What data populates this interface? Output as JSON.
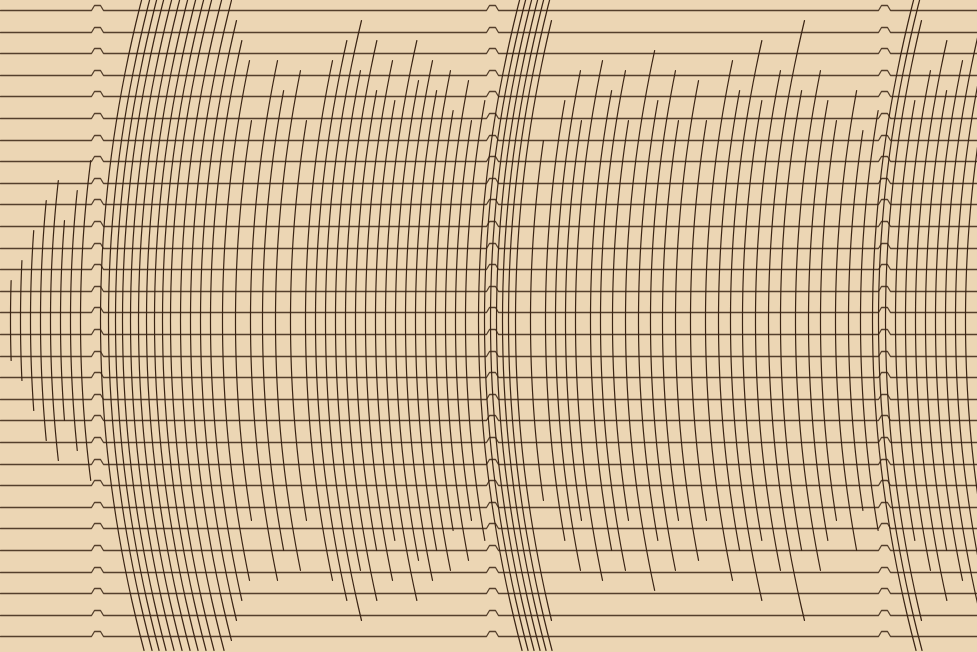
{
  "chart_data": {
    "type": "seismogram",
    "tick_labels": false,
    "grid": false,
    "color": "#3a2414",
    "xlim": [
      0,
      977
    ],
    "ylim": [
      0,
      652
    ],
    "trace_baselines": [
      10,
      32,
      53,
      75,
      96,
      118,
      140,
      161,
      183,
      204,
      226,
      248,
      269,
      291,
      312,
      334,
      356,
      377,
      399,
      420,
      442,
      464,
      485,
      507,
      528,
      550,
      572,
      593,
      615,
      636
    ],
    "time_marks": [
      95,
      490,
      882
    ],
    "swings": {
      "center": 320,
      "x": [
        10,
        20,
        30,
        40,
        50,
        60,
        70,
        80,
        100,
        108,
        115,
        122,
        130,
        138,
        146,
        154,
        162,
        170,
        180,
        190,
        200,
        210,
        222,
        235,
        250,
        262,
        275,
        290,
        305,
        315,
        325,
        335,
        345,
        355,
        365,
        375,
        385,
        395,
        405,
        415,
        425,
        435,
        445,
        455,
        465,
        478,
        484,
        490,
        496,
        502,
        508,
        515,
        530,
        545,
        555,
        565,
        575,
        590,
        600,
        612,
        625,
        638,
        650,
        662,
        675,
        690,
        705,
        718,
        730,
        742,
        755,
        768,
        780,
        795,
        808,
        820,
        835,
        848,
        860,
        872,
        878,
        885,
        895,
        905,
        915,
        925,
        935,
        945,
        955,
        965
      ],
      "amplitude": [
        40,
        60,
        90,
        120,
        140,
        100,
        130,
        160,
        330,
        330,
        330,
        330,
        330,
        330,
        330,
        330,
        330,
        330,
        330,
        320,
        300,
        280,
        260,
        200,
        260,
        230,
        250,
        200,
        260,
        280,
        300,
        250,
        280,
        230,
        260,
        220,
        280,
        240,
        260,
        230,
        250,
        210,
        240,
        200,
        220,
        330,
        330,
        330,
        330,
        330,
        330,
        300,
        180,
        220,
        250,
        200,
        260,
        230,
        250,
        200,
        270,
        220,
        250,
        200,
        240,
        200,
        260,
        230,
        280,
        220,
        250,
        300,
        230,
        250,
        220,
        200,
        230,
        190,
        210,
        330,
        330,
        300,
        220,
        250,
        280,
        230,
        260,
        300,
        240,
        200
      ]
    }
  }
}
